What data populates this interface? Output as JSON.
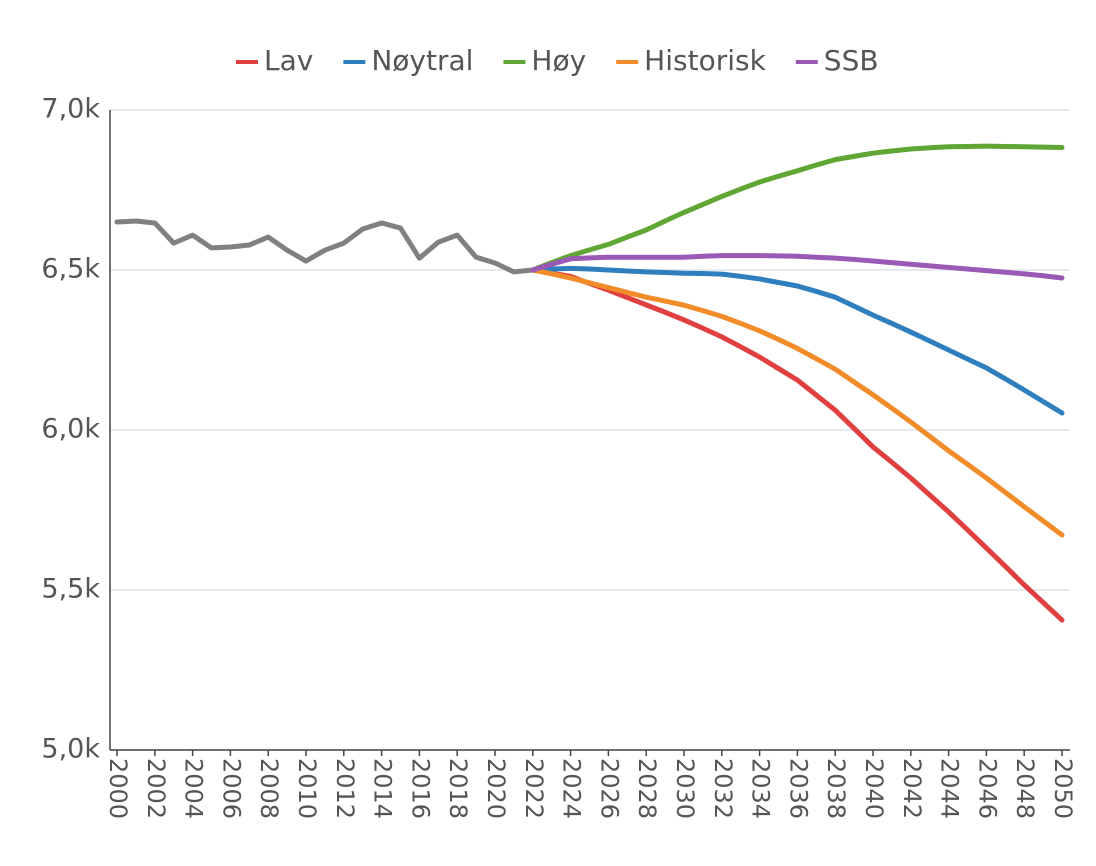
{
  "chart_data": {
    "type": "line",
    "x": [
      2000,
      2001,
      2002,
      2003,
      2004,
      2005,
      2006,
      2007,
      2008,
      2009,
      2010,
      2011,
      2012,
      2013,
      2014,
      2015,
      2016,
      2017,
      2018,
      2019,
      2020,
      2021,
      2022,
      2023,
      2024,
      2025,
      2026,
      2027,
      2028,
      2029,
      2030,
      2031,
      2032,
      2033,
      2034,
      2035,
      2036,
      2037,
      2038,
      2039,
      2040,
      2041,
      2042,
      2043,
      2044,
      2045,
      2046,
      2047,
      2048,
      2049,
      2050
    ],
    "series": [
      {
        "color": "#808080",
        "values": [
          6650,
          6653,
          6647,
          6584,
          6609,
          6569,
          6572,
          6578,
          6603,
          6562,
          6528,
          6562,
          6584,
          6628,
          6647,
          6631,
          6537,
          6587,
          6609,
          6540,
          6522,
          6494,
          6500,
          null,
          null,
          null,
          null,
          null,
          null,
          null,
          null,
          null,
          null,
          null,
          null,
          null,
          null,
          null,
          null,
          null,
          null,
          null,
          null,
          null,
          null,
          null,
          null,
          null,
          null,
          null,
          null
        ]
      },
      {
        "name": "Lav",
        "color": "#e04040",
        "values": [
          null,
          null,
          null,
          null,
          null,
          null,
          null,
          null,
          null,
          null,
          null,
          null,
          null,
          null,
          null,
          null,
          null,
          null,
          null,
          null,
          null,
          null,
          6500,
          6490,
          6480,
          6458,
          6437,
          6414,
          6391,
          6368,
          6344,
          6318,
          6291,
          6260,
          6228,
          6192,
          6156,
          6109,
          6062,
          6005,
          5947,
          5899,
          5850,
          5797,
          5744,
          5688,
          5631,
          5574,
          5516,
          5461,
          5406
        ]
      },
      {
        "name": "Nøytral",
        "color": "#2f7ebd",
        "values": [
          null,
          null,
          null,
          null,
          null,
          null,
          null,
          null,
          null,
          null,
          null,
          null,
          null,
          null,
          null,
          null,
          null,
          null,
          null,
          null,
          null,
          null,
          6500,
          6503,
          6505,
          6503,
          6500,
          6497,
          6494,
          6492,
          6490,
          6489,
          6487,
          6480,
          6472,
          6461,
          6450,
          6433,
          6415,
          6387,
          6359,
          6333,
          6306,
          6278,
          6250,
          6222,
          6194,
          6160,
          6125,
          6089,
          6053
        ]
      },
      {
        "name": "Høy",
        "color": "#5fa635",
        "values": [
          null,
          null,
          null,
          null,
          null,
          null,
          null,
          null,
          null,
          null,
          null,
          null,
          null,
          null,
          null,
          null,
          null,
          null,
          null,
          null,
          null,
          null,
          6500,
          6523,
          6545,
          6563,
          6580,
          6603,
          6625,
          6653,
          6680,
          6705,
          6730,
          6753,
          6775,
          6793,
          6810,
          6828,
          6845,
          6855,
          6865,
          6872,
          6878,
          6882,
          6885,
          6886,
          6887,
          6886,
          6885,
          6884,
          6883
        ]
      },
      {
        "name": "Historisk",
        "color": "#f28c28",
        "values": [
          null,
          null,
          null,
          null,
          null,
          null,
          null,
          null,
          null,
          null,
          null,
          null,
          null,
          null,
          null,
          null,
          null,
          null,
          null,
          null,
          null,
          null,
          6500,
          6488,
          6475,
          6460,
          6445,
          6430,
          6415,
          6403,
          6390,
          6373,
          6355,
          6333,
          6310,
          6283,
          6255,
          6223,
          6190,
          6150,
          6110,
          6068,
          6025,
          5980,
          5935,
          5893,
          5850,
          5805,
          5760,
          5716,
          5672
        ]
      },
      {
        "name": "SSB",
        "color": "#9b59b6",
        "values": [
          null,
          null,
          null,
          null,
          null,
          null,
          null,
          null,
          null,
          null,
          null,
          null,
          null,
          null,
          null,
          null,
          null,
          null,
          null,
          null,
          null,
          null,
          6500,
          6518,
          6535,
          6538,
          6540,
          6540,
          6540,
          6540,
          6540,
          6543,
          6545,
          6545,
          6545,
          6544,
          6543,
          6540,
          6537,
          6533,
          6528,
          6523,
          6518,
          6513,
          6508,
          6503,
          6498,
          6493,
          6488,
          6482,
          6475
        ]
      }
    ],
    "xlim": [
      2000,
      2050
    ],
    "xticks": [
      2000,
      2002,
      2004,
      2006,
      2008,
      2010,
      2012,
      2014,
      2016,
      2018,
      2020,
      2022,
      2024,
      2026,
      2028,
      2030,
      2032,
      2034,
      2036,
      2038,
      2040,
      2042,
      2044,
      2046,
      2048,
      2050
    ],
    "ylim": [
      5000,
      7000
    ],
    "yticks": [
      {
        "value": 5000,
        "label": "5,0k"
      },
      {
        "value": 5500,
        "label": "5,5k"
      },
      {
        "value": 6000,
        "label": "6,0k"
      },
      {
        "value": 6500,
        "label": "6,5k"
      },
      {
        "value": 7000,
        "label": "7,0k"
      }
    ],
    "grid": true,
    "legend": "top"
  }
}
